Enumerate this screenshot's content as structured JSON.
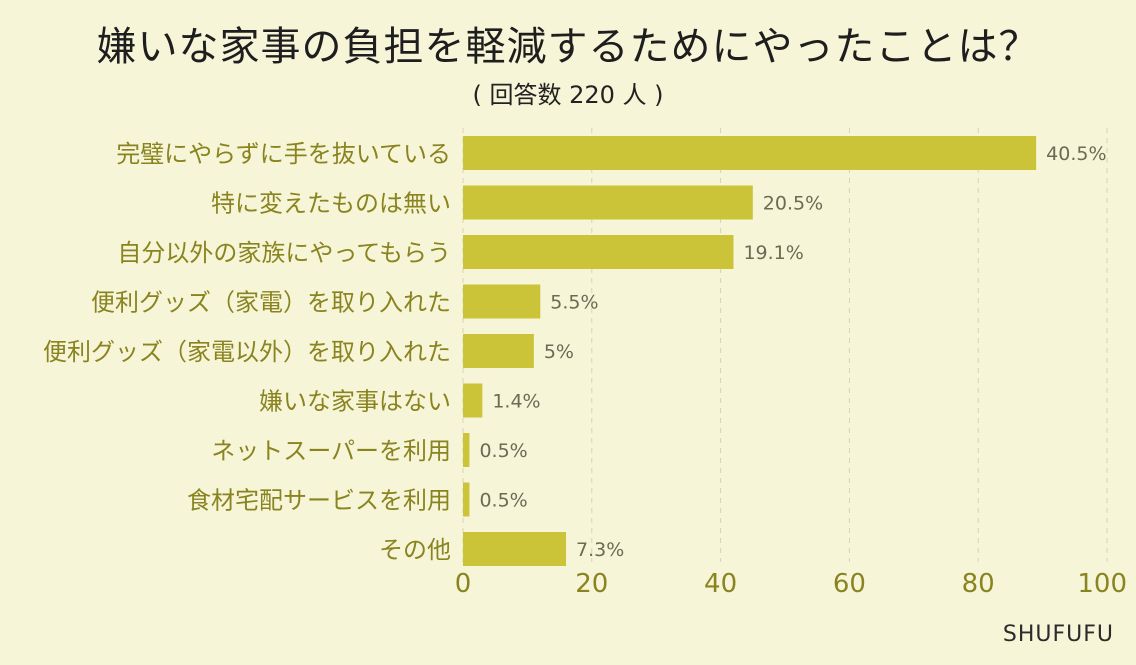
{
  "title": "嫌いな家事の負担を軽減するためにやったことは？",
  "subtitle": "( 回答数 220 人 )",
  "brand": "SHUFUFU",
  "colors": {
    "bar": "#cbc338",
    "background": "#f7f5d8",
    "label": "#8a8420",
    "grid": "#d4d2bc"
  },
  "chart_data": {
    "type": "bar",
    "orientation": "horizontal",
    "title": "嫌いな家事の負担を軽減するためにやったことは？",
    "subtitle": "( 回答数 220 人 )",
    "xlabel": "",
    "ylabel": "",
    "xlim": [
      0,
      100
    ],
    "xticks": [
      0,
      20,
      40,
      60,
      80,
      100
    ],
    "grid": "vertical dashed",
    "categories": [
      "完璧にやらずに手を抜いている",
      "特に変えたものは無い",
      "自分以外の家族にやってもらう",
      "便利グッズ（家電）を取り入れた",
      "便利グッズ（家電以外）を取り入れた",
      "嫌いな家事はない",
      "ネットスーパーを利用",
      "食材宅配サービスを利用",
      "その他"
    ],
    "values": [
      89,
      45,
      42,
      12,
      11,
      3,
      1,
      1,
      16
    ],
    "value_labels": [
      "40.5%",
      "20.5%",
      "19.1%",
      "5.5%",
      "5%",
      "1.4%",
      "0.5%",
      "0.5%",
      "7.3%"
    ]
  }
}
